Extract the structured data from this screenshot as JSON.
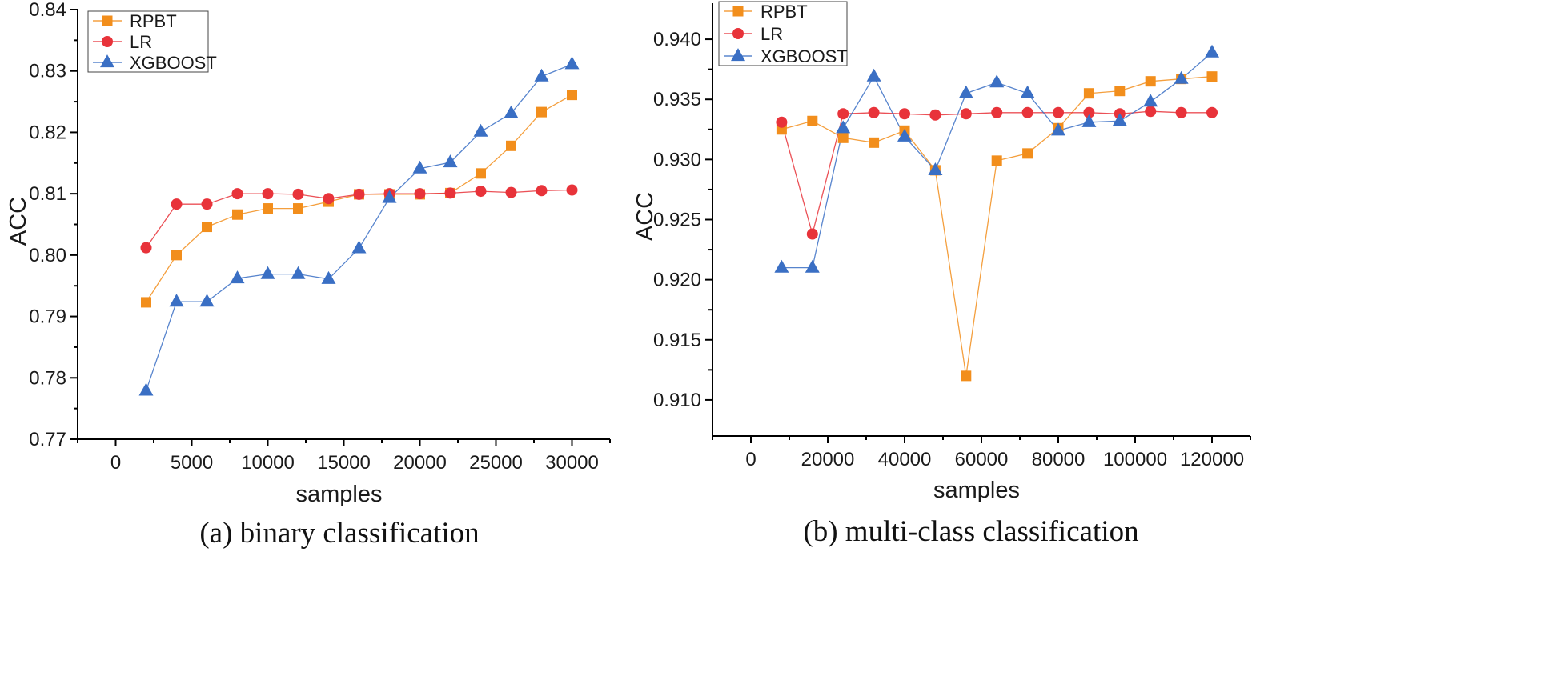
{
  "colors": {
    "RPBT": "#f28e1c",
    "LR": "#e8333a",
    "XGBOOST": "#3a6fc4"
  },
  "chart_data": [
    {
      "type": "line",
      "caption": "(a)  binary classification",
      "xlabel": "samples",
      "ylabel": "ACC",
      "xlim": [
        -2500,
        32500
      ],
      "ylim": [
        0.77,
        0.84
      ],
      "xticks": [
        0,
        5000,
        10000,
        15000,
        20000,
        25000,
        30000
      ],
      "yticks": [
        0.77,
        0.78,
        0.79,
        0.8,
        0.81,
        0.82,
        0.83,
        0.84
      ],
      "ytick_labels": [
        "0.77",
        "0.78",
        "0.79",
        "0.80",
        "0.81",
        "0.82",
        "0.83",
        "0.84"
      ],
      "legend": [
        "RPBT",
        "LR",
        "XGBOOST"
      ],
      "legend_position": "top-left",
      "x": [
        2000,
        4000,
        6000,
        8000,
        10000,
        12000,
        14000,
        16000,
        18000,
        20000,
        22000,
        24000,
        26000,
        28000,
        30000
      ],
      "series": [
        {
          "name": "RPBT",
          "marker": "square",
          "values": [
            0.7923,
            0.8,
            0.8046,
            0.8066,
            0.8076,
            0.8076,
            0.8087,
            0.8099,
            0.8099,
            0.8099,
            0.8101,
            0.8133,
            0.8178,
            0.8233,
            0.8261
          ]
        },
        {
          "name": "LR",
          "marker": "circle",
          "values": [
            0.8012,
            0.8083,
            0.8083,
            0.81,
            0.81,
            0.8099,
            0.8092,
            0.8099,
            0.81,
            0.81,
            0.8101,
            0.8104,
            0.8102,
            0.8105,
            0.8106
          ]
        },
        {
          "name": "XGBOOST",
          "marker": "triangle",
          "values": [
            0.7779,
            0.7924,
            0.7924,
            0.7962,
            0.7969,
            0.7969,
            0.7961,
            0.8011,
            0.8093,
            0.8141,
            0.8151,
            0.8201,
            0.8231,
            0.8291,
            0.8311
          ]
        }
      ]
    },
    {
      "type": "line",
      "caption": "(b)  multi-class classification",
      "xlabel": "samples",
      "ylabel": "ACC",
      "xlim": [
        -10000,
        130000
      ],
      "ylim": [
        0.907,
        0.943
      ],
      "xticks": [
        0,
        20000,
        40000,
        60000,
        80000,
        100000,
        120000
      ],
      "yticks": [
        0.91,
        0.915,
        0.92,
        0.925,
        0.93,
        0.935,
        0.94
      ],
      "ytick_labels": [
        "0.910",
        "0.915",
        "0.920",
        "0.925",
        "0.930",
        "0.935",
        "0.940"
      ],
      "legend": [
        "RPBT",
        "LR",
        "XGBOOST"
      ],
      "legend_position": "top-left",
      "x": [
        8000,
        16000,
        24000,
        32000,
        40000,
        48000,
        56000,
        64000,
        72000,
        80000,
        88000,
        96000,
        104000,
        112000,
        120000
      ],
      "series": [
        {
          "name": "RPBT",
          "marker": "square",
          "values": [
            0.9325,
            0.9332,
            0.9318,
            0.9314,
            0.9324,
            0.9291,
            0.912,
            0.9299,
            0.9305,
            0.9326,
            0.9355,
            0.9357,
            0.9365,
            0.9367,
            0.9369
          ]
        },
        {
          "name": "LR",
          "marker": "circle",
          "values": [
            0.9331,
            0.9238,
            0.9338,
            0.9339,
            0.9338,
            0.9337,
            0.9338,
            0.9339,
            0.9339,
            0.9339,
            0.9339,
            0.9338,
            0.934,
            0.9339,
            0.9339
          ]
        },
        {
          "name": "XGBOOST",
          "marker": "triangle",
          "values": [
            0.921,
            0.921,
            0.9326,
            0.9369,
            0.9319,
            0.9291,
            0.9355,
            0.9364,
            0.9355,
            0.9324,
            0.9331,
            0.9332,
            0.9348,
            0.9367,
            0.9389
          ]
        }
      ]
    }
  ]
}
